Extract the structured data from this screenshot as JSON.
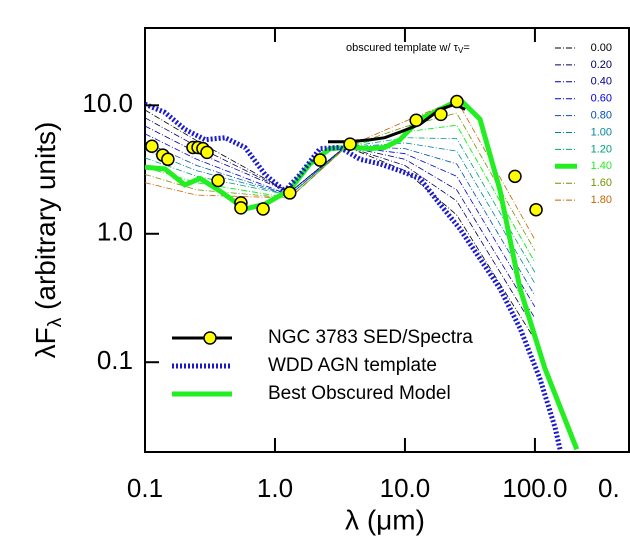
{
  "chart_data": {
    "type": "line",
    "log_x": true,
    "log_y": true,
    "xlim": [
      0.1,
      520
    ],
    "ylim": [
      0.02,
      40
    ],
    "xticks": [
      0.1,
      {
        "value": 1,
        "label": "1.0"
      },
      {
        "value": 10,
        "label": "10.0"
      },
      {
        "value": 100,
        "label": "100.0"
      }
    ],
    "yticks": [
      0.1,
      {
        "value": 1,
        "label": "1.0"
      },
      {
        "value": 10,
        "label": "10.0"
      }
    ],
    "next_panel_tick_label": "0.",
    "x_label": "λ (μm)",
    "y_label": {
      "main": "λF",
      "sub": "λ",
      "rest": " (arbitrary units)"
    },
    "legend": "lower left",
    "series": [
      {
        "name": "NGC 3783 SED/Spectra",
        "style": "markers",
        "color": "#ffff00",
        "x": [
          0.113,
          0.137,
          0.15,
          0.234,
          0.256,
          0.279,
          0.3,
          0.365,
          0.547,
          0.547,
          0.81,
          1.3,
          2.22,
          3.78,
          12.2,
          18.9,
          25.1,
          70.2,
          102
        ],
        "values": [
          4.8,
          4.1,
          3.8,
          4.7,
          4.7,
          4.6,
          4.3,
          2.6,
          1.74,
          1.59,
          1.56,
          2.08,
          3.75,
          4.99,
          7.65,
          8.5,
          10.7,
          2.8,
          1.54
        ],
        "spectrum_x": [
          2.56,
          3.45,
          4.5,
          5.4,
          7.0,
          9.2,
          13.0,
          18.6,
          24.3,
          29.0
        ],
        "spectrum_values": [
          5.2,
          5.2,
          5.3,
          5.4,
          5.6,
          6.2,
          7.1,
          9.3,
          10.2,
          9.3
        ],
        "spectrum_color": "#000000"
      },
      {
        "name": "WDD AGN template",
        "style": "dotted",
        "color": "#1a1acc",
        "x": [
          0.1,
          0.1426,
          0.203,
          0.29,
          0.413,
          0.588,
          0.838,
          1.19,
          1.56,
          2.22,
          3.16,
          4.51,
          6.42,
          9.15,
          13.0,
          18.6,
          26.5,
          37.8,
          53.8,
          76.7,
          109,
          143,
          156
        ],
        "values": [
          10.2,
          8.8,
          6.5,
          5.4,
          5.6,
          4.7,
          2.9,
          2.15,
          2.9,
          4.6,
          4.7,
          3.8,
          3.5,
          3.1,
          2.7,
          1.7,
          1.09,
          0.64,
          0.375,
          0.184,
          0.075,
          0.031,
          0.021
        ]
      },
      {
        "name": "Best Obscured Model",
        "style": "solid",
        "color": "#22ee22",
        "x": [
          0.1,
          0.1426,
          0.203,
          0.265,
          0.378,
          0.588,
          0.838,
          1.3,
          1.86,
          2.65,
          3.78,
          5.38,
          7.0,
          9.15,
          13.0,
          18.6,
          26.5,
          37.8,
          53.8,
          76.7,
          119,
          210
        ],
        "values": [
          3.3,
          3.2,
          2.4,
          2.7,
          2.15,
          1.56,
          1.7,
          2.2,
          3.5,
          4.6,
          4.7,
          4.6,
          4.7,
          5.4,
          7.8,
          9.3,
          11.1,
          7.8,
          2.2,
          0.375,
          0.09,
          0.021
        ]
      }
    ],
    "template_legend_title": {
      "main": "obscured template w/ τ",
      "sub": "V",
      "rest": "="
    },
    "template_legend": "upper right",
    "template_x": [
      0.1,
      0.25,
      1.3,
      3.5,
      10,
      25,
      100
    ],
    "template_series": [
      {
        "name": "0.00",
        "color": "#000000",
        "width": 1,
        "values": [
          9.2,
          5.3,
          2.1,
          4.8,
          3.1,
          1.4,
          0.15
        ]
      },
      {
        "name": "0.20",
        "color": "#00005a",
        "width": 1,
        "values": [
          8.0,
          4.8,
          2.1,
          4.8,
          3.4,
          1.8,
          0.18
        ]
      },
      {
        "name": "0.40",
        "color": "#000096",
        "width": 1,
        "values": [
          6.9,
          4.3,
          2.1,
          4.8,
          3.8,
          2.2,
          0.22
        ]
      },
      {
        "name": "0.60",
        "color": "#0000dc",
        "width": 1,
        "values": [
          6.0,
          3.8,
          2.0,
          4.8,
          4.2,
          2.8,
          0.27
        ]
      },
      {
        "name": "0.80",
        "color": "#0050b4",
        "width": 1,
        "values": [
          5.2,
          3.4,
          2.0,
          4.8,
          4.6,
          3.5,
          0.33
        ]
      },
      {
        "name": "1.00",
        "color": "#0087a0",
        "width": 1,
        "values": [
          4.5,
          3.1,
          2.0,
          4.7,
          5.1,
          4.4,
          0.41
        ]
      },
      {
        "name": "1.20",
        "color": "#00a07d",
        "width": 1,
        "values": [
          3.9,
          2.8,
          2.0,
          4.7,
          5.6,
          5.5,
          0.5
        ]
      },
      {
        "name": "1.40",
        "color": "#22ee22",
        "width": 5,
        "values": [
          3.3,
          2.5,
          1.9,
          4.7,
          6.2,
          7.0,
          0.6
        ]
      },
      {
        "name": "1.60",
        "color": "#6e9600",
        "width": 1,
        "values": [
          2.9,
          2.2,
          1.9,
          4.7,
          6.8,
          8.7,
          0.74
        ]
      },
      {
        "name": "1.80",
        "color": "#c86400",
        "width": 1,
        "values": [
          2.5,
          2.0,
          1.9,
          4.7,
          7.5,
          11,
          0.9
        ]
      }
    ]
  }
}
